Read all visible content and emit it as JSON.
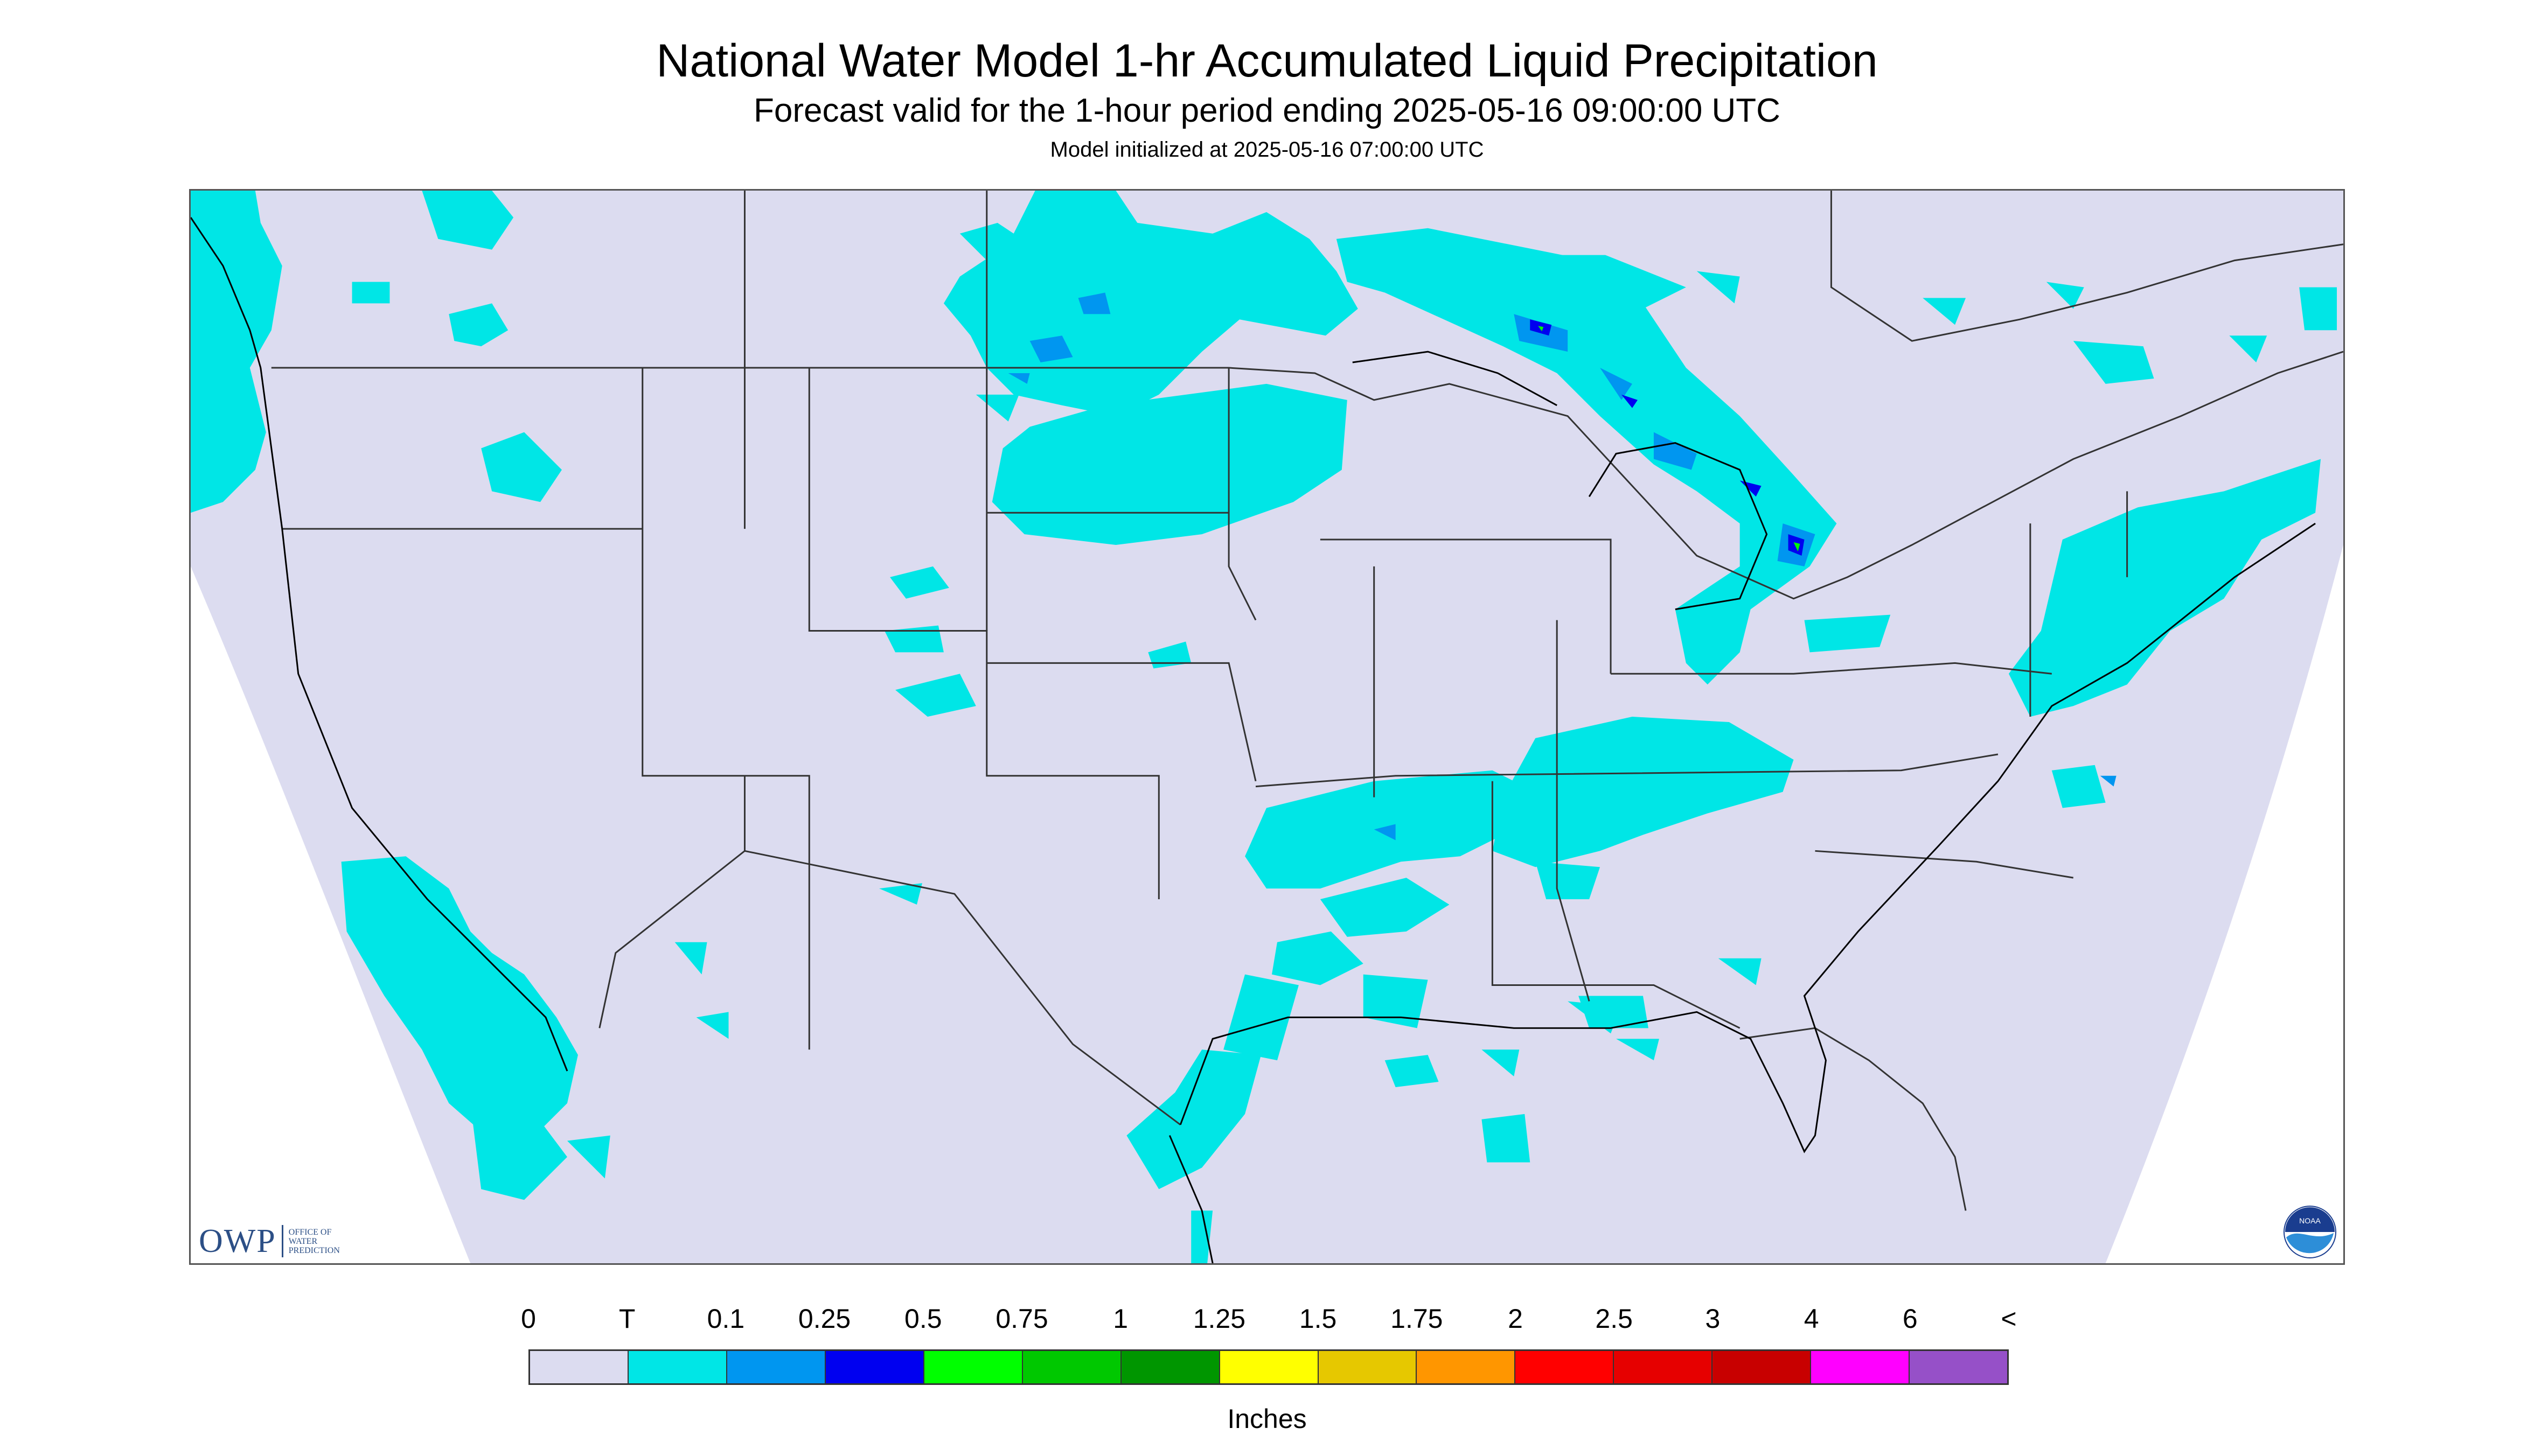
{
  "title": "National Water Model 1-hr Accumulated Liquid Precipitation",
  "subtitle": "Forecast valid for the 1-hour period ending 2025-05-16 09:00:00 UTC",
  "init_line": "Model initialized at 2025-05-16 07:00:00 UTC",
  "legend": {
    "labels": [
      "0",
      "T",
      "0.1",
      "0.25",
      "0.5",
      "0.75",
      "1",
      "1.25",
      "1.5",
      "1.75",
      "2",
      "2.5",
      "3",
      "4",
      "6",
      "<"
    ],
    "colors": [
      "#dcdcf0",
      "#00e6e6",
      "#0096f0",
      "#0000f0",
      "#00ff00",
      "#00c800",
      "#009600",
      "#ffff00",
      "#e6c800",
      "#ff9600",
      "#ff0000",
      "#e60000",
      "#c80000",
      "#ff00ff",
      "#9650c8"
    ],
    "units": "Inches"
  },
  "logos": {
    "owp_big": "OWP",
    "owp_small": [
      "OFFICE OF",
      "WATER",
      "PREDICTION"
    ],
    "noaa_text": "NOAA"
  },
  "colors": {
    "domain_fill": "#dcdcf0",
    "border_line": "#333333"
  }
}
